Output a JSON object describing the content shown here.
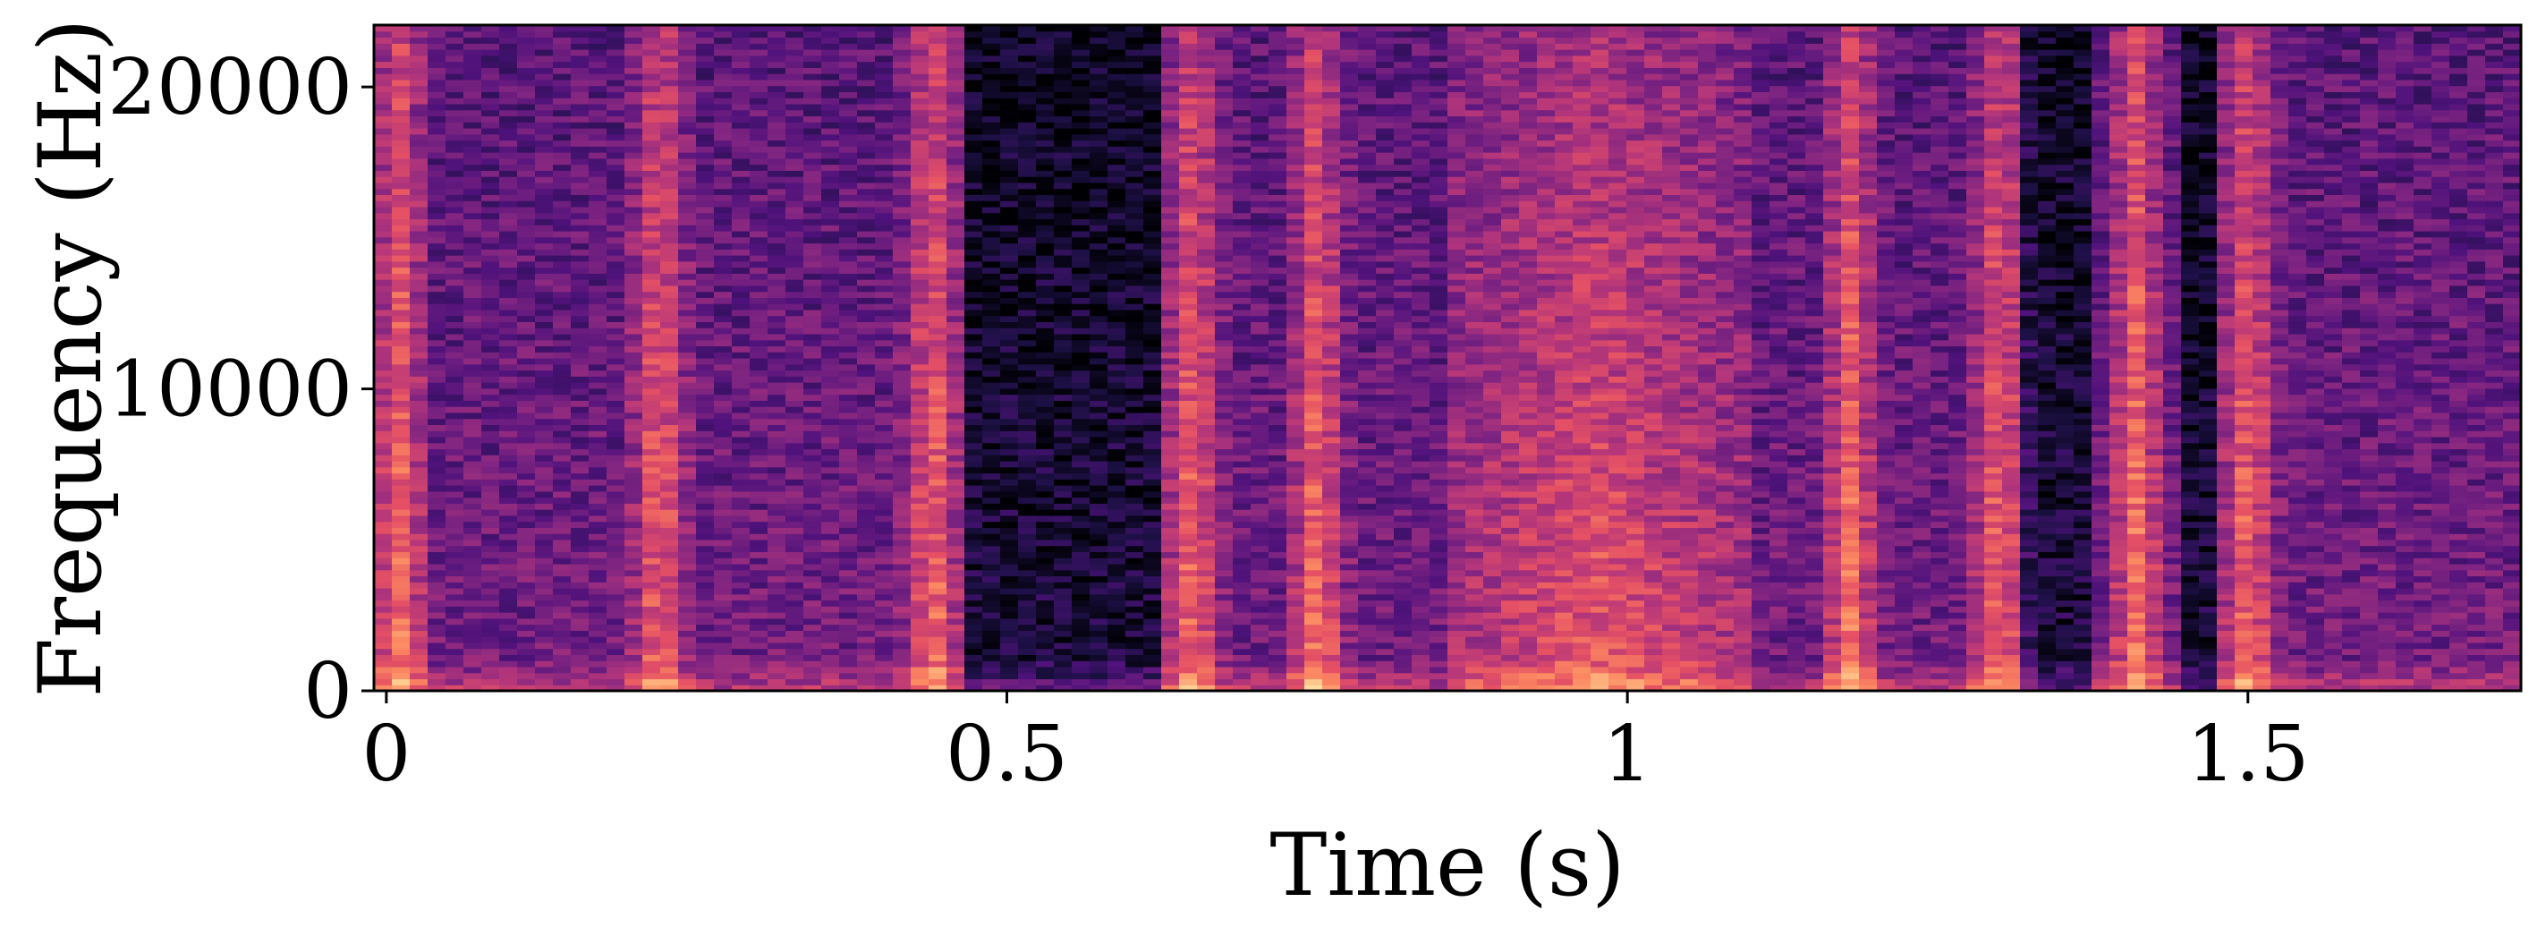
{
  "chart_data": {
    "type": "heatmap",
    "title": "",
    "xlabel": "Time (s)",
    "ylabel": "Frequency (Hz)",
    "xlim": [
      -0.01,
      1.72
    ],
    "ylim": [
      0,
      22050
    ],
    "x_ticks": [
      0,
      0.5,
      1,
      1.5
    ],
    "x_tick_labels": [
      "0",
      "0.5",
      "1",
      "1.5"
    ],
    "y_ticks": [
      0,
      10000,
      20000
    ],
    "y_tick_labels": [
      "0",
      "10000",
      "20000"
    ],
    "colormap": "magma",
    "time_bins": 120,
    "freq_bins": 110,
    "grid": false,
    "bright_transients_s": [
      0.01,
      0.22,
      0.44,
      0.65,
      0.75,
      1.18,
      1.3,
      1.41,
      1.5
    ],
    "broadband_region_s": [
      0.85,
      1.1
    ],
    "quiet_regions_s": [
      [
        0.47,
        0.62
      ],
      [
        1.32,
        1.38
      ],
      [
        1.45,
        1.48
      ]
    ]
  }
}
